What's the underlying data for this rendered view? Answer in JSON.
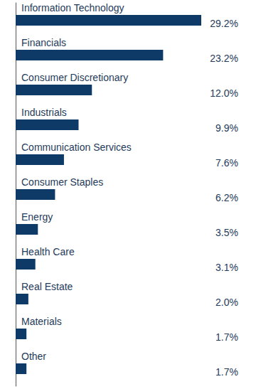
{
  "chart_data": {
    "type": "bar",
    "orientation": "horizontal",
    "categories": [
      "Information Technology",
      "Financials",
      "Consumer Discretionary",
      "Industrials",
      "Communication Services",
      "Consumer Staples",
      "Energy",
      "Health Care",
      "Real Estate",
      "Materials",
      "Other"
    ],
    "values": [
      29.2,
      23.2,
      12.0,
      9.9,
      7.6,
      6.2,
      3.5,
      3.1,
      2.0,
      1.7,
      1.7
    ],
    "value_labels": [
      "29.2%",
      "23.2%",
      "12.0%",
      "9.9%",
      "7.6%",
      "6.2%",
      "3.5%",
      "3.1%",
      "2.0%",
      "1.7%",
      "1.7%"
    ],
    "color": "#0d3a66",
    "xlim": [
      0,
      29.2
    ],
    "data_labels": true,
    "tick_labels": false,
    "grid": false
  }
}
